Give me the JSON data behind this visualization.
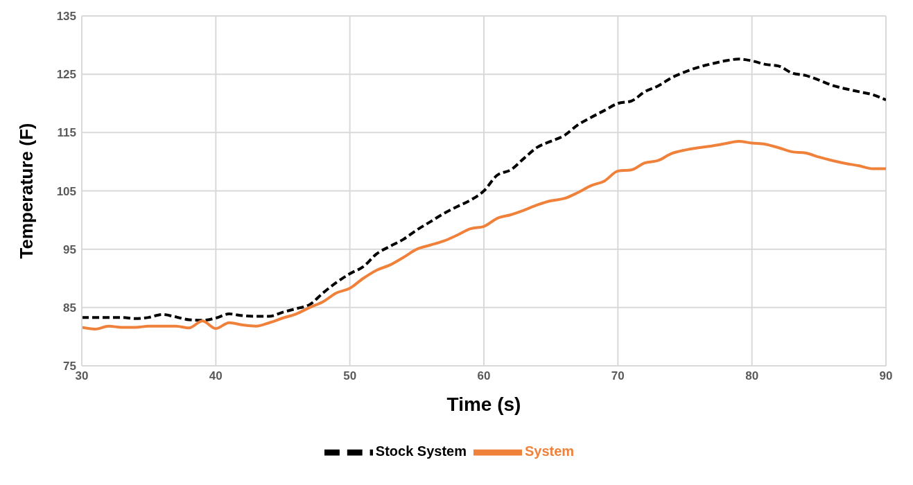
{
  "chart_data": {
    "type": "line",
    "xlabel": "Time (s)",
    "ylabel": "Temperature (F)",
    "x": [
      30,
      31,
      32,
      33,
      34,
      35,
      36,
      37,
      38,
      39,
      40,
      41,
      42,
      43,
      44,
      45,
      46,
      47,
      48,
      49,
      50,
      51,
      52,
      53,
      54,
      55,
      56,
      57,
      58,
      59,
      60,
      61,
      62,
      63,
      64,
      65,
      66,
      67,
      68,
      69,
      70,
      71,
      72,
      73,
      74,
      75,
      76,
      77,
      78,
      79,
      80,
      81,
      82,
      83,
      84,
      85,
      86,
      87,
      88,
      89,
      90
    ],
    "series": [
      {
        "name": "Stock System",
        "color": "#000000",
        "line_style": "dashed",
        "values": [
          83.3,
          83.3,
          83.3,
          83.3,
          83.1,
          83.3,
          83.8,
          83.4,
          82.9,
          82.8,
          83.2,
          83.9,
          83.6,
          83.5,
          83.5,
          84.2,
          84.8,
          85.5,
          87.5,
          89.3,
          90.8,
          92.0,
          94.2,
          95.5,
          96.7,
          98.3,
          99.7,
          101.1,
          102.3,
          103.4,
          105.0,
          107.7,
          108.6,
          110.6,
          112.5,
          113.5,
          114.5,
          116.3,
          117.6,
          118.8,
          120.0,
          120.4,
          122.0,
          123.0,
          124.4,
          125.4,
          126.2,
          126.8,
          127.3,
          127.6,
          127.3,
          126.7,
          126.4,
          125.2,
          124.8,
          124.0,
          123.1,
          122.5,
          122.0,
          121.5,
          120.6
        ]
      },
      {
        "name": "System",
        "color": "#f0813a",
        "line_style": "solid",
        "values": [
          81.6,
          81.3,
          81.8,
          81.6,
          81.6,
          81.8,
          81.8,
          81.8,
          81.5,
          82.7,
          81.4,
          82.4,
          82.0,
          81.8,
          82.4,
          83.2,
          83.9,
          85.0,
          86.0,
          87.5,
          88.3,
          90.0,
          91.4,
          92.3,
          93.6,
          95.0,
          95.7,
          96.4,
          97.4,
          98.5,
          98.9,
          100.3,
          100.9,
          101.7,
          102.6,
          103.3,
          103.7,
          104.7,
          105.9,
          106.7,
          108.4,
          108.6,
          109.8,
          110.2,
          111.4,
          112.0,
          112.4,
          112.7,
          113.1,
          113.5,
          113.2,
          113.0,
          112.4,
          111.7,
          111.5,
          110.8,
          110.2,
          109.7,
          109.3,
          108.8,
          108.8
        ]
      }
    ],
    "xlim": [
      30,
      90
    ],
    "xticks": [
      30,
      40,
      50,
      60,
      70,
      80,
      90
    ],
    "ylim": [
      75,
      135
    ],
    "yticks": [
      75,
      85,
      95,
      105,
      115,
      125,
      135
    ],
    "grid": true,
    "legend": "bottom",
    "marker": "none"
  }
}
